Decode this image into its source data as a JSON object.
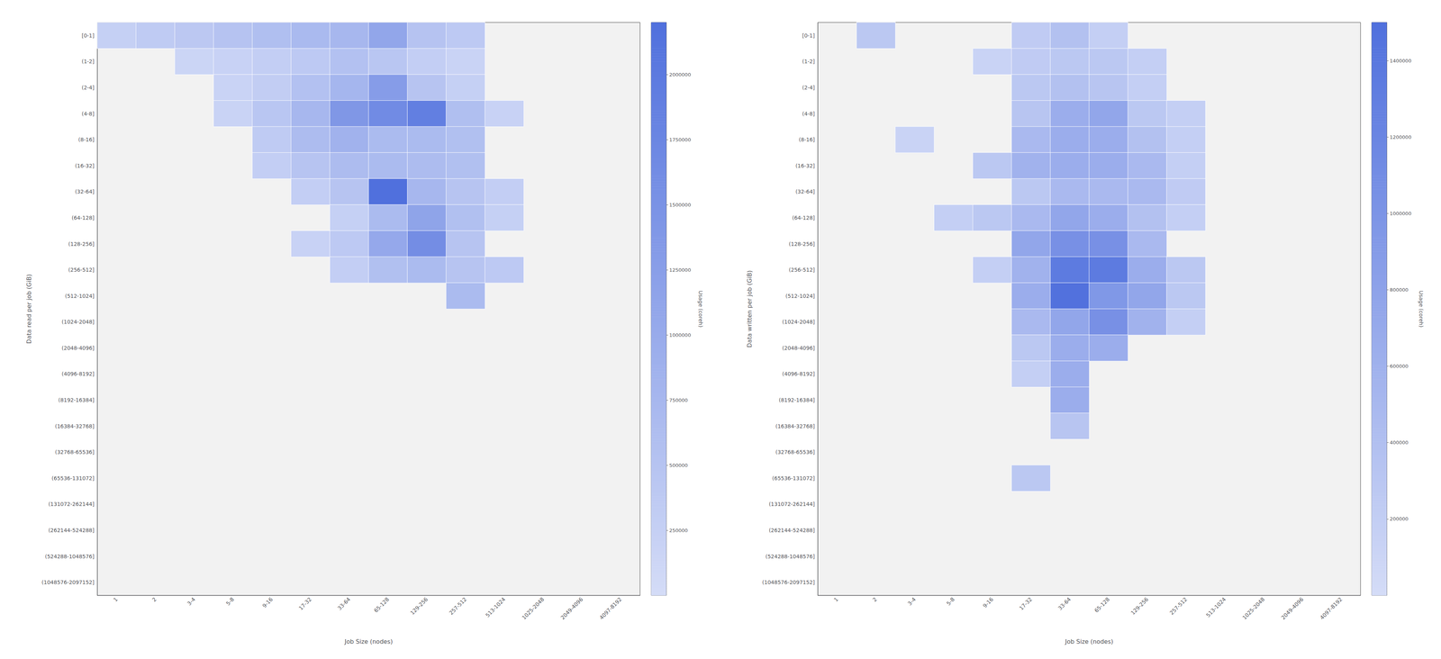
{
  "chart_data": [
    {
      "type": "heatmap",
      "categories": [
        "1",
        "2",
        "3-4",
        "5-8",
        "9-16",
        "17-32",
        "33-64",
        "65-128",
        "129-256",
        "257-512",
        "513-1024",
        "1025-2048",
        "2049-4096",
        "4097-8192"
      ],
      "y_categories": [
        "[0-1]",
        "(1-2]",
        "(2-4]",
        "(4-8]",
        "(8-16]",
        "(16-32]",
        "(32-64]",
        "(64-128]",
        "(128-256]",
        "(256-512]",
        "(512-1024]",
        "(1024-2048]",
        "(2048-4096]",
        "(4096-8192]",
        "(8192-16384]",
        "(16384-32768]",
        "(32768-65536]",
        "(65536-131072]",
        "(131072-262144]",
        "(262144-524288]",
        "(524288-1048576]",
        "(1048576-2097152]"
      ],
      "values": [
        [
          250000,
          350000,
          400000,
          500000,
          600000,
          700000,
          750000,
          1100000,
          500000,
          380000,
          null,
          null,
          null,
          null
        ],
        [
          null,
          null,
          150000,
          200000,
          280000,
          380000,
          550000,
          450000,
          280000,
          180000,
          null,
          null,
          null,
          null
        ],
        [
          null,
          null,
          null,
          180000,
          300000,
          550000,
          780000,
          1300000,
          480000,
          250000,
          null,
          null,
          null,
          null
        ],
        [
          null,
          null,
          null,
          180000,
          450000,
          750000,
          1400000,
          1650000,
          1900000,
          600000,
          200000,
          null,
          null,
          null
        ],
        [
          null,
          null,
          null,
          null,
          350000,
          650000,
          850000,
          680000,
          680000,
          580000,
          null,
          null,
          null,
          null
        ],
        [
          null,
          null,
          null,
          null,
          280000,
          480000,
          650000,
          680000,
          650000,
          580000,
          null,
          null,
          null,
          null
        ],
        [
          null,
          null,
          null,
          null,
          null,
          280000,
          480000,
          2200000,
          750000,
          480000,
          280000,
          null,
          null,
          null
        ],
        [
          null,
          null,
          null,
          null,
          null,
          null,
          250000,
          680000,
          1150000,
          580000,
          250000,
          null,
          null,
          null
        ],
        [
          null,
          null,
          null,
          null,
          null,
          200000,
          380000,
          1050000,
          1600000,
          480000,
          null,
          null,
          null,
          null
        ],
        [
          null,
          null,
          null,
          null,
          null,
          null,
          280000,
          580000,
          680000,
          480000,
          380000,
          null,
          null,
          null
        ],
        [
          null,
          null,
          null,
          null,
          null,
          null,
          null,
          null,
          null,
          680000,
          null,
          null,
          null,
          null
        ],
        [
          null,
          null,
          null,
          null,
          null,
          null,
          null,
          null,
          null,
          null,
          null,
          null,
          null,
          null
        ],
        [
          null,
          null,
          null,
          null,
          null,
          null,
          null,
          null,
          null,
          null,
          null,
          null,
          null,
          null
        ],
        [
          null,
          null,
          null,
          null,
          null,
          null,
          null,
          null,
          null,
          null,
          null,
          null,
          null,
          null
        ],
        [
          null,
          null,
          null,
          null,
          null,
          null,
          null,
          null,
          null,
          null,
          null,
          null,
          null,
          null
        ],
        [
          null,
          null,
          null,
          null,
          null,
          null,
          null,
          null,
          null,
          null,
          null,
          null,
          null,
          null
        ],
        [
          null,
          null,
          null,
          null,
          null,
          null,
          null,
          null,
          null,
          null,
          null,
          null,
          null,
          null
        ],
        [
          null,
          null,
          null,
          null,
          null,
          null,
          null,
          null,
          null,
          null,
          null,
          null,
          null,
          null
        ],
        [
          null,
          null,
          null,
          null,
          null,
          null,
          null,
          null,
          null,
          null,
          null,
          null,
          null,
          null
        ],
        [
          null,
          null,
          null,
          null,
          null,
          null,
          null,
          null,
          null,
          null,
          null,
          null,
          null,
          null
        ],
        [
          null,
          null,
          null,
          null,
          null,
          null,
          null,
          null,
          null,
          null,
          null,
          null,
          null,
          null
        ],
        [
          null,
          null,
          null,
          null,
          null,
          null,
          null,
          null,
          null,
          null,
          null,
          null,
          null,
          null
        ]
      ],
      "xlabel": "Job Size (nodes)",
      "ylabel": "Data read per job (GiB)",
      "colorbar_range": [
        0,
        2200000
      ],
      "colorbar_ticks": [
        250000,
        500000,
        750000,
        1000000,
        1250000,
        1500000,
        1750000,
        2000000
      ],
      "colorbar_label": "Usage (coreh)"
    },
    {
      "type": "heatmap",
      "categories": [
        "1",
        "2",
        "3-4",
        "5-8",
        "9-16",
        "17-32",
        "33-64",
        "65-128",
        "129-256",
        "257-512",
        "513-1024",
        "1025-2048",
        "2049-4096",
        "4097-8192"
      ],
      "y_categories": [
        "[0-1]",
        "(1-2]",
        "(2-4]",
        "(4-8]",
        "(8-16]",
        "(16-32]",
        "(32-64]",
        "(64-128]",
        "(128-256]",
        "(256-512]",
        "(512-1024]",
        "(1024-2048]",
        "(2048-4096]",
        "(4096-8192]",
        "(8192-16384]",
        "(16384-32768]",
        "(32768-65536]",
        "(65536-131072]",
        "(131072-262144]",
        "(262144-524288]",
        "(524288-1048576]",
        "(1048576-2097152]"
      ],
      "values": [
        [
          null,
          280000,
          null,
          null,
          null,
          230000,
          380000,
          180000,
          null,
          null,
          null,
          null,
          null,
          null
        ],
        [
          null,
          null,
          null,
          null,
          130000,
          230000,
          280000,
          280000,
          180000,
          null,
          null,
          null,
          null,
          null
        ],
        [
          null,
          null,
          null,
          null,
          null,
          280000,
          380000,
          320000,
          180000,
          null,
          null,
          null,
          null,
          null
        ],
        [
          null,
          null,
          null,
          null,
          null,
          320000,
          650000,
          750000,
          280000,
          180000,
          null,
          null,
          null,
          null
        ],
        [
          null,
          null,
          130000,
          null,
          null,
          480000,
          650000,
          650000,
          380000,
          180000,
          null,
          null,
          null,
          null
        ],
        [
          null,
          null,
          null,
          null,
          280000,
          580000,
          650000,
          650000,
          480000,
          180000,
          null,
          null,
          null,
          null
        ],
        [
          null,
          null,
          null,
          null,
          null,
          280000,
          480000,
          480000,
          480000,
          230000,
          null,
          null,
          null,
          null
        ],
        [
          null,
          null,
          null,
          180000,
          280000,
          480000,
          750000,
          650000,
          380000,
          180000,
          null,
          null,
          null,
          null
        ],
        [
          null,
          null,
          null,
          null,
          null,
          750000,
          1050000,
          1050000,
          480000,
          null,
          null,
          null,
          null,
          null
        ],
        [
          null,
          null,
          null,
          null,
          180000,
          580000,
          1350000,
          1350000,
          650000,
          280000,
          null,
          null,
          null,
          null
        ],
        [
          null,
          null,
          null,
          null,
          null,
          650000,
          1480000,
          950000,
          750000,
          280000,
          null,
          null,
          null,
          null
        ],
        [
          null,
          null,
          null,
          null,
          null,
          480000,
          750000,
          1050000,
          580000,
          180000,
          null,
          null,
          null,
          null
        ],
        [
          null,
          null,
          null,
          null,
          null,
          280000,
          650000,
          650000,
          null,
          null,
          null,
          null,
          null,
          null
        ],
        [
          null,
          null,
          null,
          null,
          null,
          180000,
          650000,
          null,
          null,
          null,
          null,
          null,
          null,
          null
        ],
        [
          null,
          null,
          null,
          null,
          null,
          null,
          650000,
          null,
          null,
          null,
          null,
          null,
          null,
          null
        ],
        [
          null,
          null,
          null,
          null,
          null,
          null,
          320000,
          null,
          null,
          null,
          null,
          null,
          null,
          null
        ],
        [
          null,
          null,
          null,
          null,
          null,
          null,
          null,
          null,
          null,
          null,
          null,
          null,
          null,
          null
        ],
        [
          null,
          null,
          null,
          null,
          null,
          280000,
          null,
          null,
          null,
          null,
          null,
          null,
          null,
          null
        ],
        [
          null,
          null,
          null,
          null,
          null,
          null,
          null,
          null,
          null,
          null,
          null,
          null,
          null,
          null
        ],
        [
          null,
          null,
          null,
          null,
          null,
          null,
          null,
          null,
          null,
          null,
          null,
          null,
          null,
          null
        ],
        [
          null,
          null,
          null,
          null,
          null,
          null,
          null,
          null,
          null,
          null,
          null,
          null,
          null,
          null
        ],
        [
          null,
          null,
          null,
          null,
          null,
          null,
          null,
          null,
          null,
          null,
          null,
          null,
          null,
          null
        ]
      ],
      "xlabel": "Job Size (nodes)",
      "ylabel": "Data written per job (GiB)",
      "colorbar_range": [
        0,
        1500000
      ],
      "colorbar_ticks": [
        200000,
        400000,
        600000,
        800000,
        1000000,
        1200000,
        1400000
      ],
      "colorbar_label": "Usage (coreh)"
    }
  ]
}
